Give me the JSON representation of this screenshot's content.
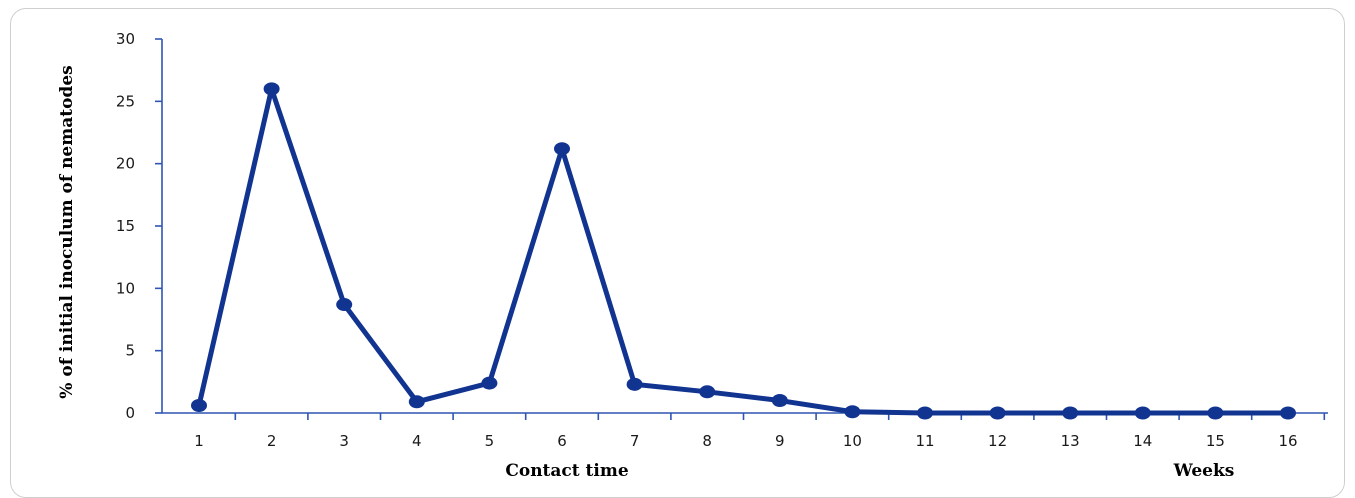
{
  "chart_data": {
    "type": "line",
    "title": "",
    "ylabel": "% of initial inoculum of nematodes",
    "xlabel": "Contact time",
    "xunit": "Weeks",
    "ylim": [
      0,
      30
    ],
    "yticks": [
      "0",
      "5",
      "10",
      "15",
      "20",
      "25",
      "30"
    ],
    "categories": [
      "1",
      "2",
      "3",
      "4",
      "5",
      "6",
      "7",
      "8",
      "9",
      "10",
      "11",
      "12",
      "13",
      "14",
      "15",
      "16"
    ],
    "series": [
      {
        "values": [
          0.6,
          26.0,
          8.7,
          0.9,
          2.4,
          21.2,
          2.3,
          1.7,
          1.0,
          0.1,
          0,
          0,
          0,
          0,
          0,
          0
        ],
        "color": "#123491"
      }
    ],
    "grid": false,
    "legend": "none"
  }
}
